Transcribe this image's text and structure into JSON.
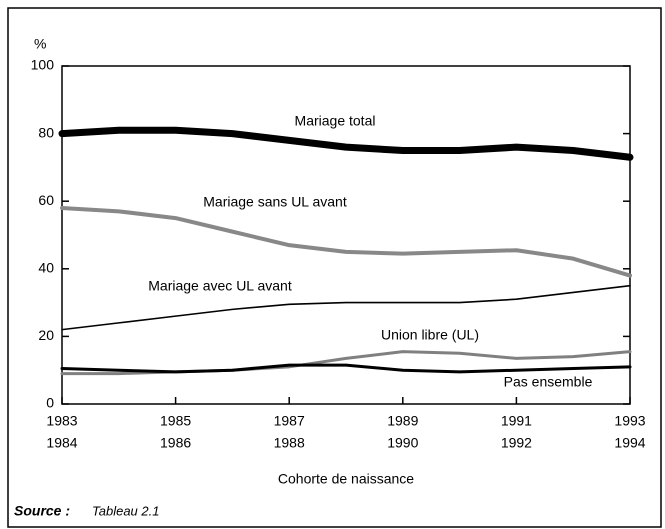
{
  "chart_data": {
    "type": "line",
    "y_label": "%",
    "x_label": "Cohorte de naissance",
    "source_label": "Source :",
    "source_text": "Tableau 2.1",
    "x": [
      1983,
      1984,
      1985,
      1986,
      1987,
      1988,
      1989,
      1990,
      1991,
      1992,
      1993
    ],
    "xlim": [
      1983,
      1993
    ],
    "xticks": [
      {
        "value": 1983,
        "label": "1983",
        "label2": "1984"
      },
      {
        "value": 1985,
        "label": "1985",
        "label2": "1986"
      },
      {
        "value": 1987,
        "label": "1987",
        "label2": "1988"
      },
      {
        "value": 1989,
        "label": "1989",
        "label2": "1990"
      },
      {
        "value": 1991,
        "label": "1991",
        "label2": "1992"
      },
      {
        "value": 1993,
        "label": "1993",
        "label2": "1994"
      }
    ],
    "ylim": [
      0,
      100
    ],
    "yticks": [
      0,
      20,
      40,
      60,
      80,
      100
    ],
    "series": [
      {
        "name": "Mariage total",
        "color": "#000000",
        "width": 7,
        "values": [
          80,
          81,
          81,
          80,
          78,
          76,
          75,
          75,
          76,
          75,
          73
        ]
      },
      {
        "name": "Mariage sans UL avant",
        "color": "#888888",
        "width": 4,
        "values": [
          58,
          57,
          55,
          51,
          47,
          45,
          44.5,
          45,
          45.5,
          43,
          38
        ]
      },
      {
        "name": "Mariage avec UL avant",
        "color": "#000000",
        "width": 1.6,
        "values": [
          22,
          24,
          26,
          28,
          29.5,
          30,
          30,
          30,
          31,
          33,
          35
        ]
      },
      {
        "name": "Union libre (UL)",
        "color": "#808080",
        "width": 3,
        "values": [
          9,
          9,
          9.5,
          10,
          11,
          13.5,
          15.5,
          15,
          13.5,
          14,
          15.5
        ]
      },
      {
        "name": "Pas ensemble",
        "color": "#000000",
        "width": 3,
        "values": [
          10.5,
          10,
          9.5,
          10,
          11.5,
          11.5,
          10,
          9.5,
          10,
          10.5,
          11
        ]
      }
    ]
  }
}
